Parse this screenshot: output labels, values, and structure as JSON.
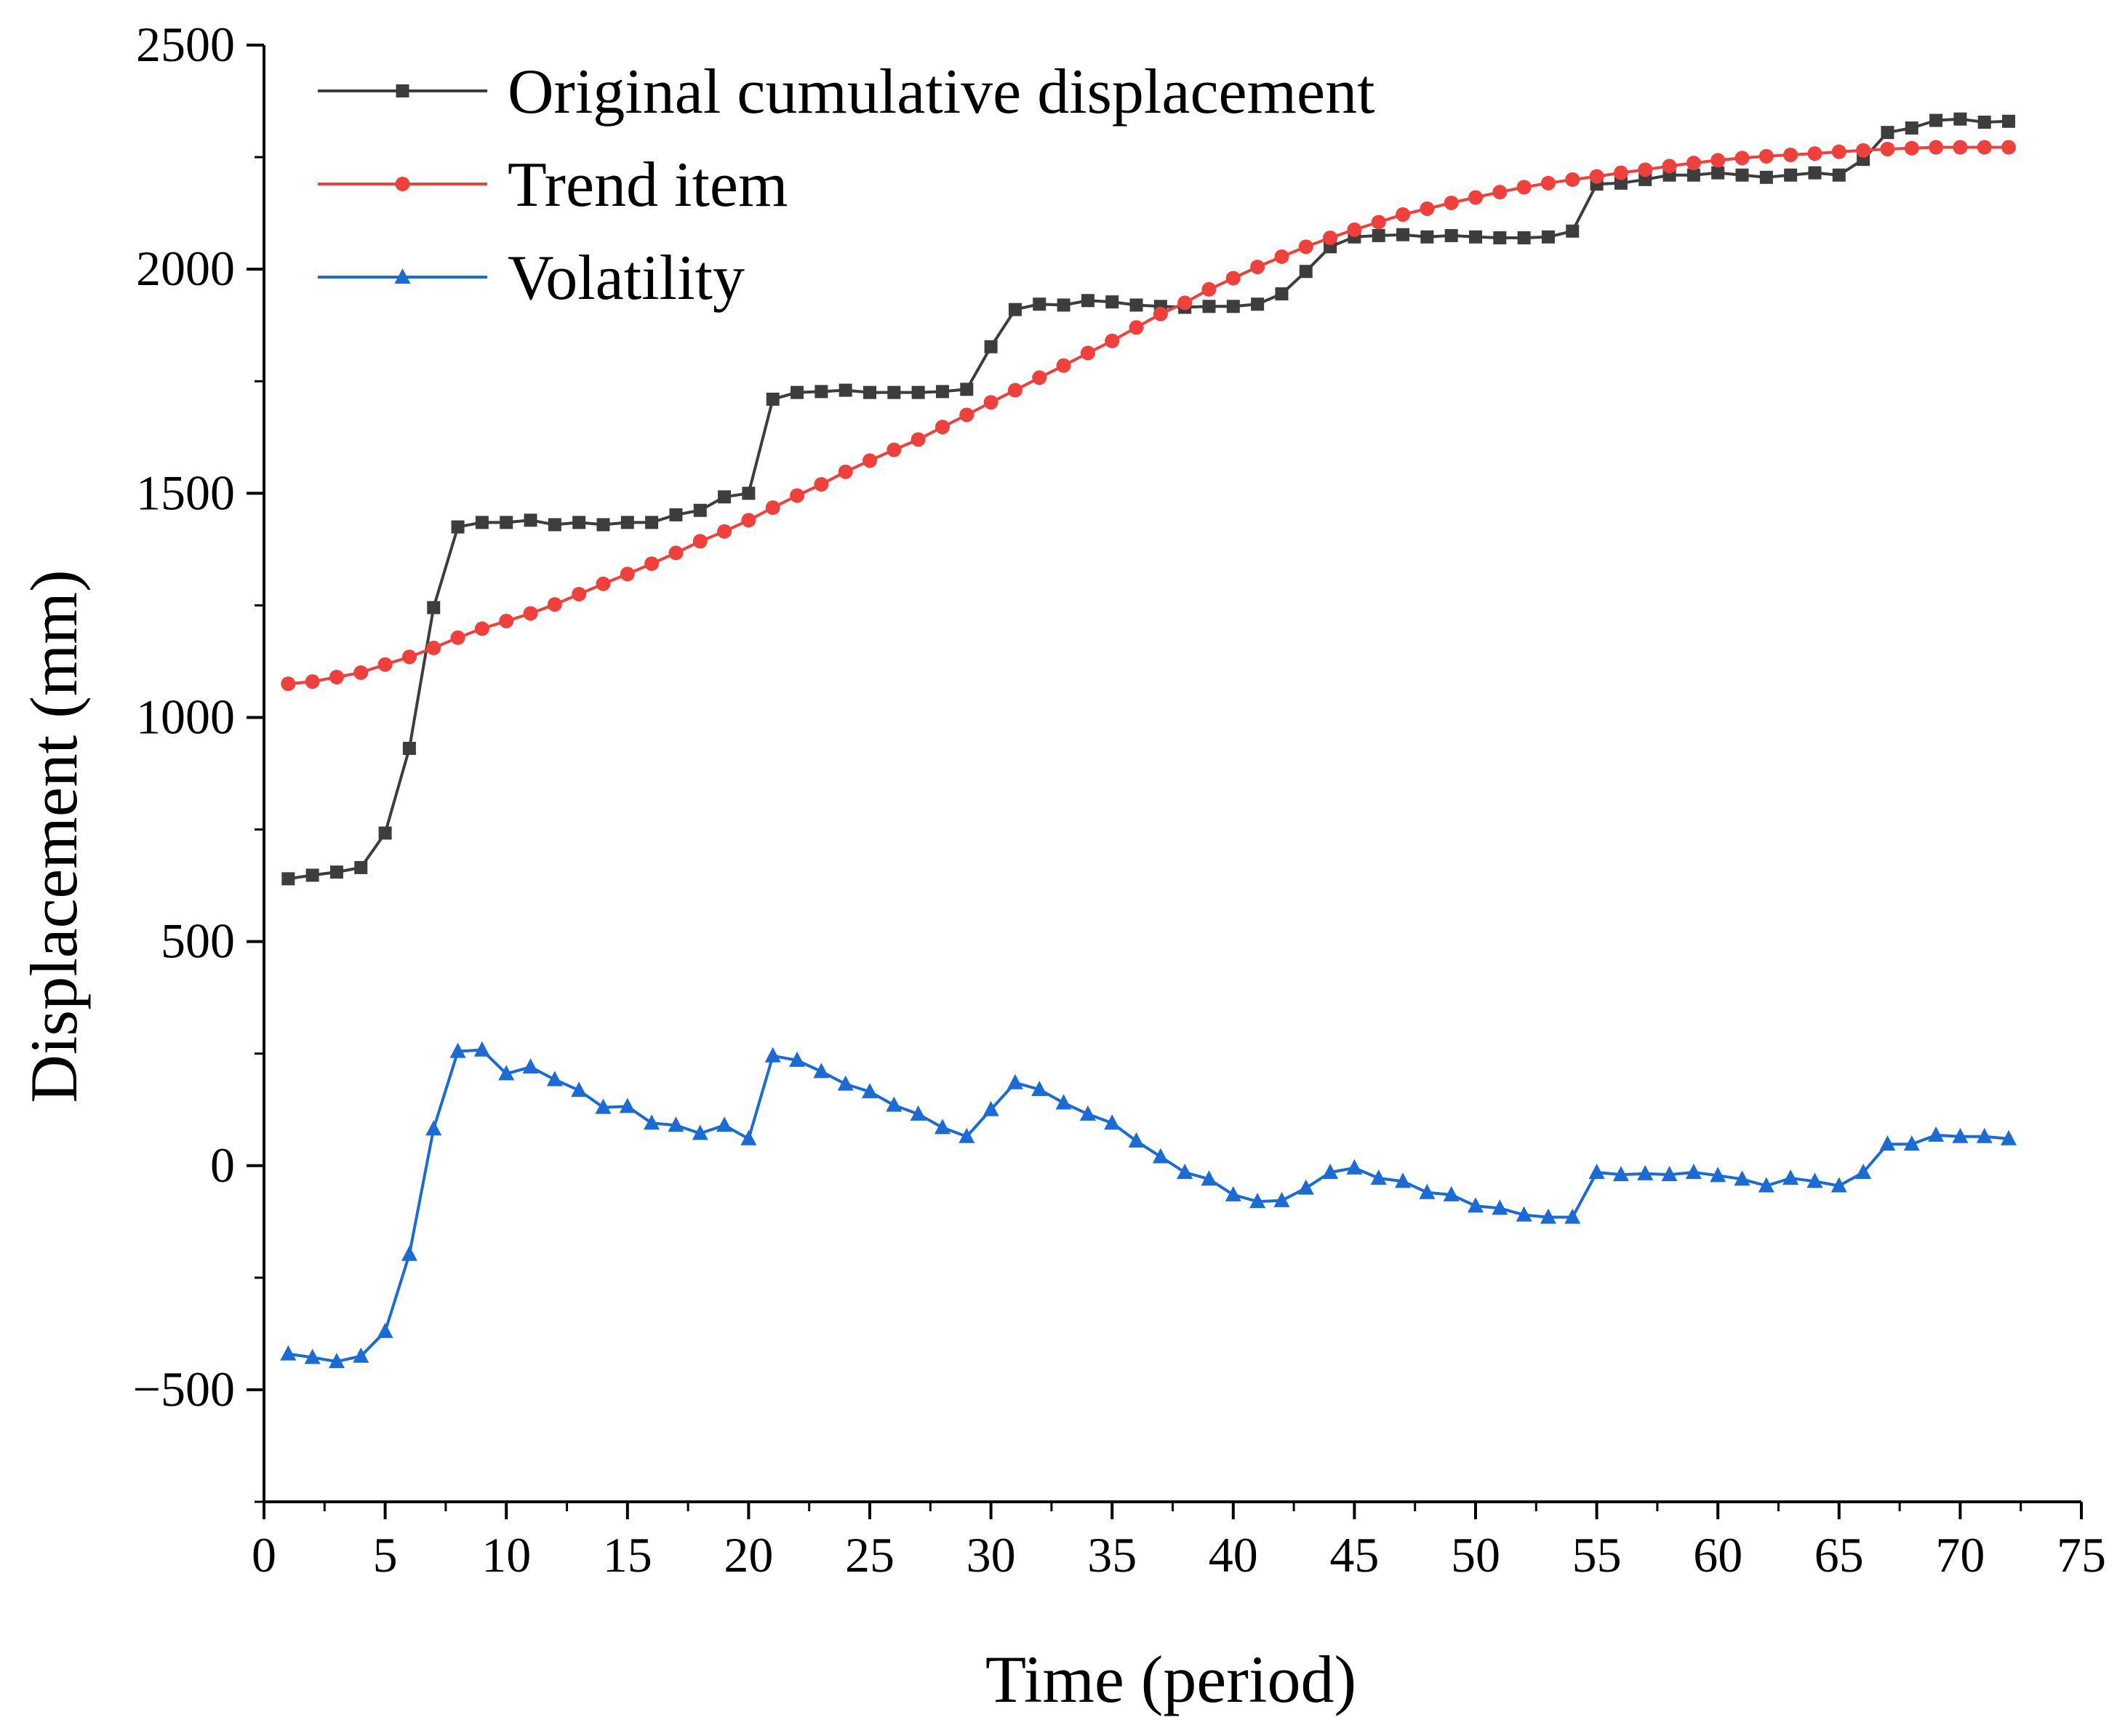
{
  "chart_data": {
    "type": "line",
    "title": "",
    "xlabel": "Time (period)",
    "ylabel": "Displacement (mm)",
    "xlim": [
      0,
      75
    ],
    "ylim": [
      -750,
      2500
    ],
    "xticks": [
      0,
      5,
      10,
      15,
      20,
      25,
      30,
      35,
      40,
      45,
      50,
      55,
      60,
      65,
      70,
      75
    ],
    "yticks": [
      -500,
      0,
      500,
      1000,
      1500,
      2000,
      2500
    ],
    "ytick_labels": [
      "−500",
      "0",
      "500",
      "1000",
      "1500",
      "2000",
      "2500"
    ],
    "grid": false,
    "legend": "top-left",
    "x": [
      1,
      2,
      3,
      4,
      5,
      6,
      7,
      8,
      9,
      10,
      11,
      12,
      13,
      14,
      15,
      16,
      17,
      18,
      19,
      20,
      21,
      22,
      23,
      24,
      25,
      26,
      27,
      28,
      29,
      30,
      31,
      32,
      33,
      34,
      35,
      36,
      37,
      38,
      39,
      40,
      41,
      42,
      43,
      44,
      45,
      46,
      47,
      48,
      49,
      50,
      51,
      52,
      53,
      54,
      55,
      56,
      57,
      58,
      59,
      60,
      61,
      62,
      63,
      64,
      65,
      66,
      67,
      68,
      69,
      70,
      71,
      72
    ],
    "series": [
      {
        "name": "Original cumulative displacement",
        "color": "#3d3d3d",
        "marker": "square",
        "values": [
          640,
          648,
          655,
          665,
          742,
          931,
          1245,
          1425,
          1435,
          1435,
          1440,
          1430,
          1435,
          1430,
          1435,
          1435,
          1452,
          1462,
          1492,
          1500,
          1710,
          1725,
          1727,
          1730,
          1725,
          1725,
          1725,
          1727,
          1732,
          1827,
          1910,
          1922,
          1920,
          1930,
          1927,
          1920,
          1917,
          1915,
          1917,
          1917,
          1922,
          1945,
          1995,
          2050,
          2072,
          2075,
          2077,
          2072,
          2075,
          2072,
          2070,
          2070,
          2072,
          2085,
          2190,
          2192,
          2200,
          2210,
          2210,
          2215,
          2210,
          2205,
          2210,
          2215,
          2210,
          2245,
          2305,
          2315,
          2332,
          2335,
          2328,
          2330
        ]
      },
      {
        "name": "Trend item",
        "color": "#f0403c",
        "marker": "circle",
        "values": [
          1075,
          1080,
          1090,
          1100,
          1118,
          1135,
          1155,
          1178,
          1198,
          1215,
          1232,
          1252,
          1275,
          1298,
          1320,
          1343,
          1367,
          1393,
          1415,
          1440,
          1468,
          1495,
          1520,
          1548,
          1573,
          1597,
          1620,
          1648,
          1675,
          1703,
          1730,
          1758,
          1785,
          1813,
          1840,
          1870,
          1900,
          1925,
          1955,
          1980,
          2005,
          2028,
          2050,
          2070,
          2088,
          2105,
          2122,
          2135,
          2148,
          2160,
          2172,
          2183,
          2192,
          2200,
          2207,
          2215,
          2222,
          2230,
          2237,
          2243,
          2248,
          2252,
          2255,
          2258,
          2262,
          2265,
          2268,
          2270,
          2272,
          2272,
          2272,
          2272
        ]
      },
      {
        "name": "Volatility",
        "color": "#1a6bd6",
        "marker": "triangle",
        "values": [
          -420,
          -428,
          -437,
          -425,
          -370,
          -198,
          82,
          255,
          258,
          205,
          220,
          192,
          168,
          130,
          132,
          95,
          90,
          72,
          90,
          60,
          245,
          235,
          210,
          182,
          165,
          135,
          115,
          85,
          65,
          125,
          185,
          170,
          140,
          115,
          95,
          55,
          20,
          -15,
          -30,
          -65,
          -80,
          -78,
          -50,
          -15,
          -5,
          -28,
          -35,
          -60,
          -65,
          -90,
          -95,
          -110,
          -115,
          -115,
          -15,
          -20,
          -18,
          -20,
          -15,
          -22,
          -30,
          -45,
          -28,
          -35,
          -45,
          -15,
          48,
          48,
          68,
          65,
          65,
          60
        ]
      }
    ]
  }
}
